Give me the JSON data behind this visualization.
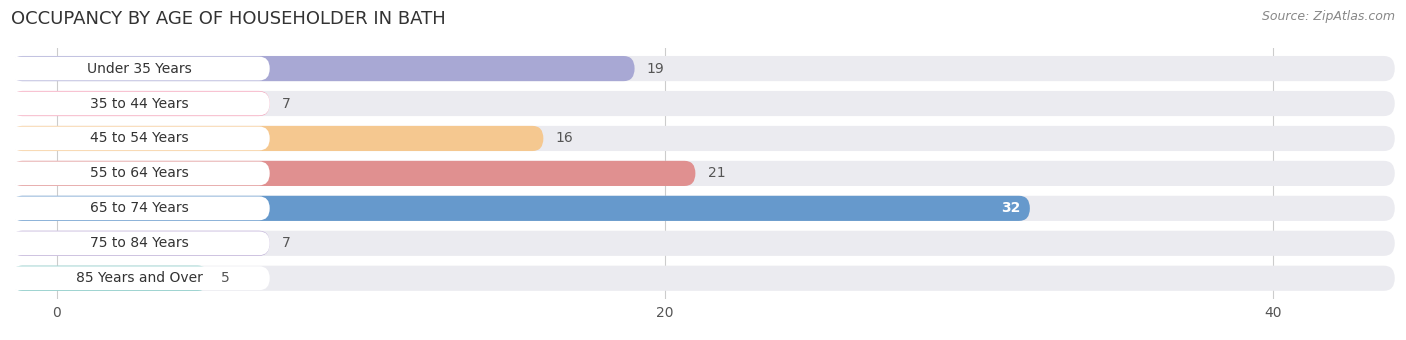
{
  "title": "OCCUPANCY BY AGE OF HOUSEHOLDER IN BATH",
  "source": "Source: ZipAtlas.com",
  "categories": [
    "Under 35 Years",
    "35 to 44 Years",
    "45 to 54 Years",
    "55 to 64 Years",
    "65 to 74 Years",
    "75 to 84 Years",
    "85 Years and Over"
  ],
  "values": [
    19,
    7,
    16,
    21,
    32,
    7,
    5
  ],
  "bar_colors": [
    "#a8a8d4",
    "#f4a0b8",
    "#f5c890",
    "#e09090",
    "#6699cc",
    "#c0b0d8",
    "#80c8c4"
  ],
  "bar_bg_color": "#ebebf0",
  "bg_row_color": "#f8f8fb",
  "xlim": [
    -1.5,
    44
  ],
  "xticks": [
    0,
    20,
    40
  ],
  "label_color_light": "#ffffff",
  "label_color_dark": "#555555",
  "title_fontsize": 13,
  "source_fontsize": 9,
  "tick_fontsize": 10,
  "bar_label_fontsize": 10,
  "category_fontsize": 10,
  "background_color": "#ffffff"
}
